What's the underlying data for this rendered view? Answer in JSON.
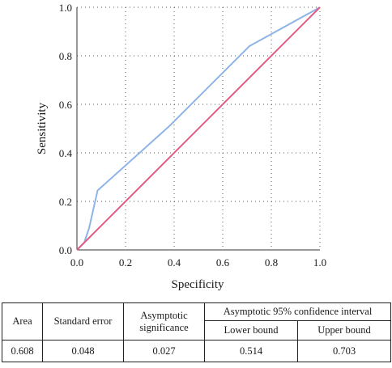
{
  "chart_data": {
    "type": "line",
    "xlabel": "Specificity",
    "ylabel": "Sensitivity",
    "xlim": [
      0,
      1
    ],
    "ylim": [
      0,
      1
    ],
    "x_ticks": [
      "0.0",
      "0.2",
      "0.4",
      "0.6",
      "0.8",
      "1.0"
    ],
    "y_ticks": [
      "0.0",
      "0.2",
      "0.4",
      "0.6",
      "0.8",
      "1.0"
    ],
    "grid": "dotted",
    "series": [
      {
        "color": "#8fb4e6",
        "x": [
          0,
          0.03,
          0.05,
          0.085,
          0.38,
          0.71,
          1.0
        ],
        "y": [
          0,
          0.03,
          0.09,
          0.245,
          0.51,
          0.84,
          1.0
        ]
      },
      {
        "color": "#e05c80",
        "x": [
          0,
          1
        ],
        "y": [
          0,
          1
        ]
      }
    ]
  },
  "table": {
    "headers": {
      "area": "Area",
      "standard_error": "Standard error",
      "asymptotic_significance": "Asymptotic significance",
      "confidence_interval": "Asymptotic 95% confidence interval",
      "lower_bound": "Lower bound",
      "upper_bound": "Upper bound"
    },
    "values": {
      "area": "0.608",
      "standard_error": "0.048",
      "asymptotic_significance": "0.027",
      "lower_bound": "0.514",
      "upper_bound": "0.703"
    }
  }
}
